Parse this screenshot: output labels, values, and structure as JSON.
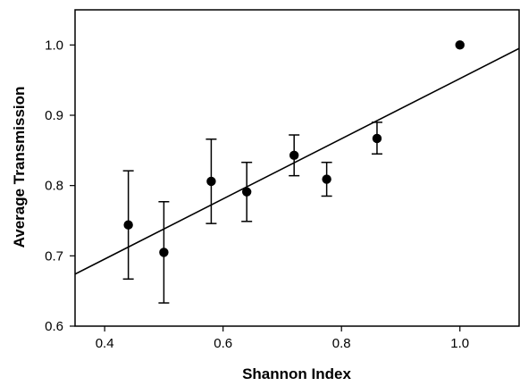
{
  "chart_data": {
    "type": "scatter",
    "title": "",
    "xlabel": "Shannon Index",
    "ylabel": "Average Transmission",
    "xlim": [
      0.35,
      1.1
    ],
    "ylim": [
      0.6,
      1.05
    ],
    "x_ticks": [
      0.4,
      0.6,
      0.8,
      1.0
    ],
    "y_ticks": [
      0.6,
      0.7,
      0.8,
      0.9,
      1.0
    ],
    "x_tick_labels": [
      "0.4",
      "0.6",
      "0.8",
      "1.0"
    ],
    "y_tick_labels": [
      "0.6",
      "0.7",
      "0.8",
      "0.9",
      "1.0"
    ],
    "grid": false,
    "points": [
      {
        "x": 0.44,
        "y": 0.744,
        "err_low": 0.667,
        "err_high": 0.821
      },
      {
        "x": 0.5,
        "y": 0.705,
        "err_low": 0.633,
        "err_high": 0.777
      },
      {
        "x": 0.58,
        "y": 0.806,
        "err_low": 0.746,
        "err_high": 0.866
      },
      {
        "x": 0.64,
        "y": 0.791,
        "err_low": 0.749,
        "err_high": 0.833
      },
      {
        "x": 0.72,
        "y": 0.843,
        "err_low": 0.814,
        "err_high": 0.872
      },
      {
        "x": 0.775,
        "y": 0.809,
        "err_low": 0.785,
        "err_high": 0.833
      },
      {
        "x": 0.86,
        "y": 0.867,
        "err_low": 0.845,
        "err_high": 0.89
      },
      {
        "x": 1.0,
        "y": 1.0
      }
    ],
    "regression_line": {
      "x": [
        0.35,
        1.1
      ],
      "y": [
        0.674,
        0.995
      ]
    },
    "colors": {
      "marker": "#000000",
      "line": "#000000",
      "background": "#ffffff"
    }
  }
}
